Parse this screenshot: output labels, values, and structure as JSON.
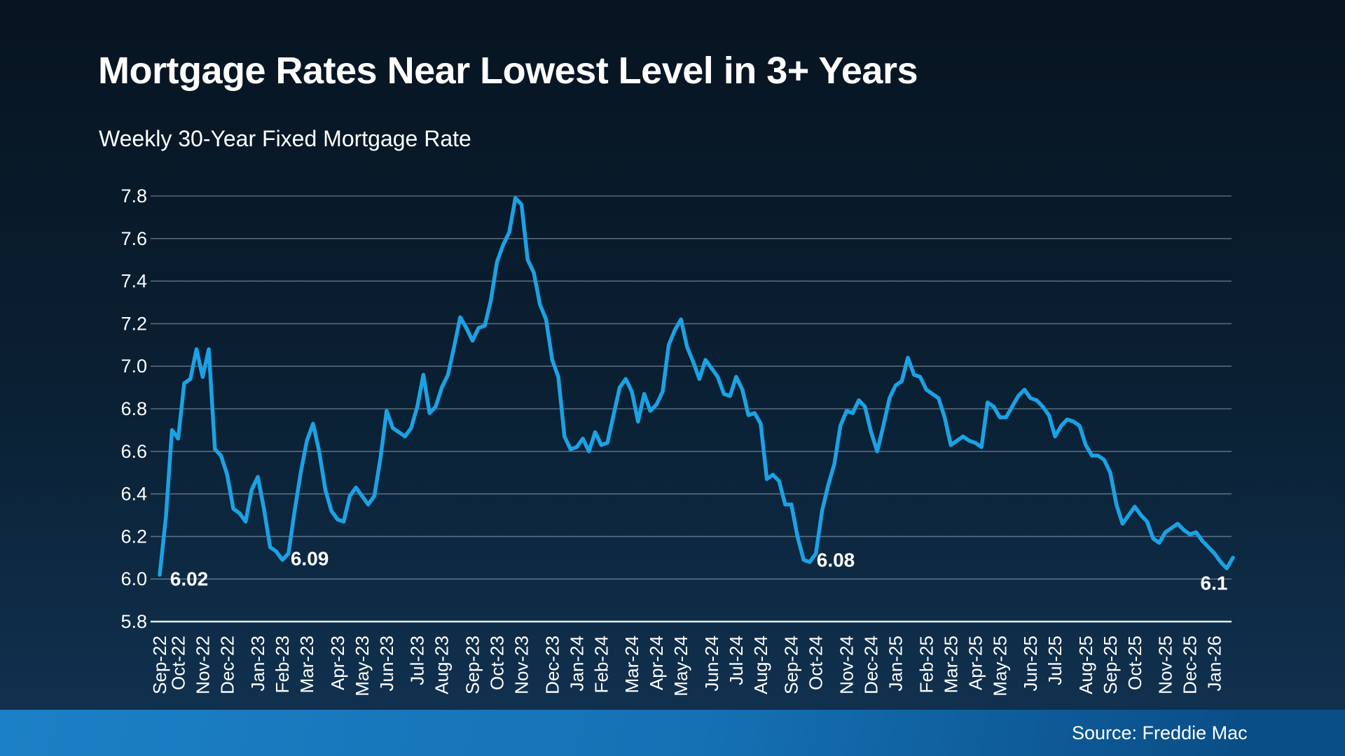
{
  "header": {
    "title": "Mortgage Rates Near Lowest Level in 3+ Years",
    "subtitle": "Weekly 30-Year Fixed Mortgage Rate"
  },
  "footer": {
    "source": "Source: Freddie Mac"
  },
  "theme": {
    "background_top": "#071421",
    "background_middle": "#0A2033",
    "background_bottom": "#113353",
    "footer_gradient_left": "#1C80C6",
    "footer_gradient_middle": "#1571B4",
    "footer_gradient_right": "#0A4E87",
    "text": "#FFFFFF"
  },
  "chart_data": {
    "type": "line",
    "title": "Mortgage Rates Near Lowest Level in 3+ Years",
    "subtitle": "Weekly 30-Year Fixed Mortgage Rate",
    "xlabel": "",
    "ylabel": "",
    "unit": "percent",
    "frequency": "weekly",
    "ylim": [
      5.8,
      7.8
    ],
    "y_tick_step": 0.2,
    "y_ticks": [
      7.8,
      7.6,
      7.4,
      7.2,
      7.0,
      6.8,
      6.6,
      6.4,
      6.2,
      6.0,
      5.8
    ],
    "grid": true,
    "legend": "none",
    "x_tick_labels": [
      {
        "label": "Sep-22",
        "week": 0
      },
      {
        "label": "Oct-22",
        "week": 3
      },
      {
        "label": "Nov-22",
        "week": 7
      },
      {
        "label": "Dec-22",
        "week": 11
      },
      {
        "label": "Jan-23",
        "week": 16
      },
      {
        "label": "Feb-23",
        "week": 20
      },
      {
        "label": "Mar-23",
        "week": 24
      },
      {
        "label": "Apr-23",
        "week": 29
      },
      {
        "label": "May-23",
        "week": 33
      },
      {
        "label": "Jun-23",
        "week": 37
      },
      {
        "label": "Jul-23",
        "week": 42
      },
      {
        "label": "Aug-23",
        "week": 46
      },
      {
        "label": "Sep-23",
        "week": 51
      },
      {
        "label": "Oct-23",
        "week": 55
      },
      {
        "label": "Nov-23",
        "week": 59
      },
      {
        "label": "Dec-23",
        "week": 64
      },
      {
        "label": "Jan-24",
        "week": 68
      },
      {
        "label": "Feb-24",
        "week": 72
      },
      {
        "label": "Mar-24",
        "week": 77
      },
      {
        "label": "Apr-24",
        "week": 81
      },
      {
        "label": "May-24",
        "week": 85
      },
      {
        "label": "Jun-24",
        "week": 90
      },
      {
        "label": "Jul-24",
        "week": 94
      },
      {
        "label": "Aug-24",
        "week": 98
      },
      {
        "label": "Sep-24",
        "week": 103
      },
      {
        "label": "Oct-24",
        "week": 107
      },
      {
        "label": "Nov-24",
        "week": 112
      },
      {
        "label": "Dec-24",
        "week": 116
      },
      {
        "label": "Jan-25",
        "week": 120
      },
      {
        "label": "Feb-25",
        "week": 125
      },
      {
        "label": "Mar-25",
        "week": 129
      },
      {
        "label": "Apr-25",
        "week": 133
      },
      {
        "label": "May-25",
        "week": 137
      },
      {
        "label": "Jun-25",
        "week": 142
      },
      {
        "label": "Jul-25",
        "week": 146
      },
      {
        "label": "Aug-25",
        "week": 151
      },
      {
        "label": "Sep-25",
        "week": 155
      },
      {
        "label": "Oct-25",
        "week": 159
      },
      {
        "label": "Nov-25",
        "week": 164
      },
      {
        "label": "Dec-25",
        "week": 168
      },
      {
        "label": "Jan-26",
        "week": 172
      }
    ],
    "values": [
      6.02,
      6.29,
      6.7,
      6.66,
      6.92,
      6.94,
      7.08,
      6.95,
      7.08,
      6.61,
      6.58,
      6.49,
      6.33,
      6.31,
      6.27,
      6.42,
      6.48,
      6.33,
      6.15,
      6.13,
      6.09,
      6.12,
      6.32,
      6.5,
      6.65,
      6.73,
      6.6,
      6.42,
      6.32,
      6.28,
      6.27,
      6.39,
      6.43,
      6.39,
      6.35,
      6.39,
      6.57,
      6.79,
      6.71,
      6.69,
      6.67,
      6.71,
      6.81,
      6.96,
      6.78,
      6.81,
      6.9,
      6.96,
      7.09,
      7.23,
      7.18,
      7.12,
      7.18,
      7.19,
      7.31,
      7.49,
      7.57,
      7.63,
      7.79,
      7.76,
      7.5,
      7.44,
      7.29,
      7.22,
      7.03,
      6.95,
      6.67,
      6.61,
      6.62,
      6.66,
      6.6,
      6.69,
      6.63,
      6.64,
      6.77,
      6.9,
      6.94,
      6.88,
      6.74,
      6.87,
      6.79,
      6.82,
      6.88,
      7.1,
      7.17,
      7.22,
      7.09,
      7.02,
      6.94,
      7.03,
      6.99,
      6.95,
      6.87,
      6.86,
      6.95,
      6.89,
      6.77,
      6.78,
      6.73,
      6.47,
      6.49,
      6.46,
      6.35,
      6.35,
      6.2,
      6.09,
      6.08,
      6.12,
      6.32,
      6.44,
      6.54,
      6.72,
      6.79,
      6.78,
      6.84,
      6.81,
      6.69,
      6.6,
      6.72,
      6.85,
      6.91,
      6.93,
      7.04,
      6.96,
      6.95,
      6.89,
      6.87,
      6.85,
      6.76,
      6.63,
      6.65,
      6.67,
      6.65,
      6.64,
      6.62,
      6.83,
      6.81,
      6.76,
      6.76,
      6.81,
      6.86,
      6.89,
      6.85,
      6.84,
      6.81,
      6.77,
      6.67,
      6.72,
      6.75,
      6.74,
      6.72,
      6.63,
      6.58,
      6.58,
      6.56,
      6.5,
      6.35,
      6.26,
      6.3,
      6.34,
      6.3,
      6.27,
      6.19,
      6.17,
      6.22,
      6.24,
      6.26,
      6.23,
      6.21,
      6.22,
      6.18,
      6.15,
      6.12,
      6.08,
      6.05,
      6.1
    ],
    "annotations": [
      {
        "label": "6.02",
        "week": 0,
        "value": 6.02
      },
      {
        "label": "6.09",
        "week": 20,
        "value": 6.09
      },
      {
        "label": "6.08",
        "week": 106,
        "value": 6.08
      },
      {
        "label": "6.1",
        "week": 175,
        "value": 6.1
      }
    ],
    "colors": {
      "line": "#1BA2E4",
      "grid": "rgba(200,212,222,0.42)",
      "axis_line": "#E8EEF2",
      "tick_text": "#FFFFFF",
      "annotation_text": "#FFFFFF"
    }
  }
}
